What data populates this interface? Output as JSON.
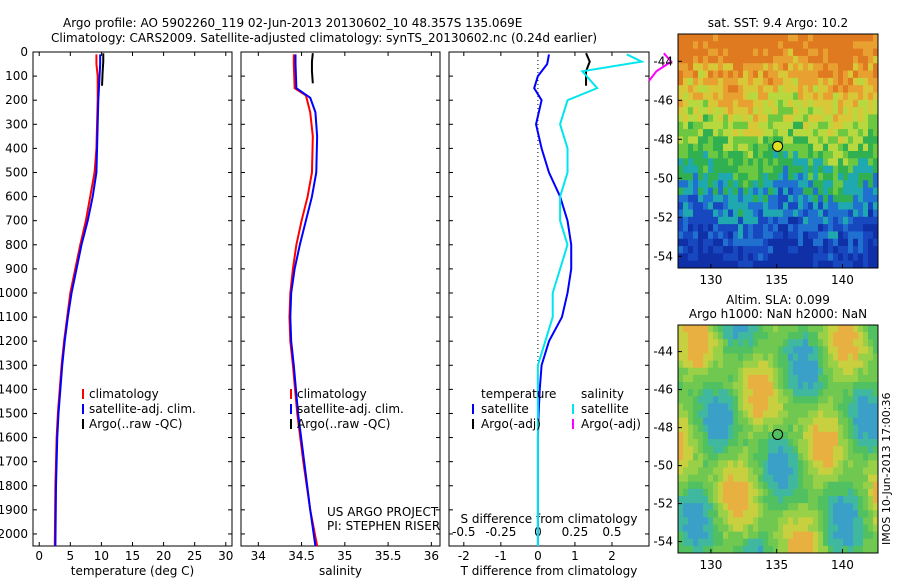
{
  "header": {
    "title_line1": "Argo profile: AO 5902260_119 02-Jun-2013 20130602_10 48.357S 135.069E",
    "title_line2": "Climatology: CARS2009. Satellite-adjusted climatology: synTS_20130602.nc (0.24d earlier)"
  },
  "colors": {
    "climatology": "#ff0000",
    "satellite": "#0000ff",
    "argo": "#000000",
    "sat_salinity": "#00e5ee",
    "argo_salinity": "#ff00ff"
  },
  "chart_data": [
    {
      "id": "temperature",
      "type": "line",
      "xlabel": "temperature (deg C)",
      "xlim": [
        -1,
        31
      ],
      "xticks": [
        0,
        5,
        10,
        15,
        20,
        25,
        30
      ],
      "ylim": [
        0,
        2050
      ],
      "yticks": [
        0,
        100,
        200,
        300,
        400,
        500,
        600,
        700,
        800,
        900,
        1000,
        1100,
        1200,
        1300,
        1400,
        1500,
        1600,
        1700,
        1800,
        1900,
        2000
      ],
      "y_inverted": true,
      "legend": [
        "climatology",
        "satellite-adj. clim.",
        "Argo(..raw -QC)"
      ],
      "series": [
        {
          "name": "climatology",
          "color": "#ff0000",
          "x": [
            9.2,
            9.2,
            9.4,
            9.4,
            9.4,
            9.3,
            9.2,
            8.9,
            8.2,
            7.5,
            6.6,
            5.8,
            5.0,
            4.5,
            4.0,
            3.6,
            3.3,
            3.0,
            2.8,
            2.7,
            2.6,
            2.5
          ],
          "y": [
            10,
            50,
            100,
            150,
            200,
            300,
            400,
            500,
            600,
            700,
            800,
            900,
            1000,
            1100,
            1200,
            1300,
            1400,
            1500,
            1600,
            1700,
            1800,
            2050
          ]
        },
        {
          "name": "satellite-adj. clim.",
          "color": "#0000ff",
          "x": [
            9.8,
            9.8,
            9.7,
            9.6,
            9.5,
            9.4,
            9.3,
            9.2,
            8.6,
            7.8,
            6.8,
            6.0,
            5.2,
            4.6,
            4.1,
            3.7,
            3.4,
            3.1,
            2.9,
            2.8,
            2.7,
            2.6
          ],
          "y": [
            10,
            50,
            100,
            150,
            200,
            300,
            400,
            500,
            600,
            700,
            800,
            900,
            1000,
            1100,
            1200,
            1300,
            1400,
            1500,
            1600,
            1700,
            1800,
            2050
          ]
        },
        {
          "name": "Argo(..raw -QC)",
          "color": "#000000",
          "x": [
            10.3,
            10.3,
            10.2,
            10.1
          ],
          "y": [
            5,
            40,
            80,
            140
          ]
        }
      ]
    },
    {
      "id": "salinity",
      "type": "line",
      "xlabel": "salinity",
      "xlim": [
        33.8,
        36.1
      ],
      "xticks": [
        34,
        34.5,
        35,
        35.5,
        36
      ],
      "ylim": [
        0,
        2050
      ],
      "y_inverted": true,
      "legend": [
        "climatology",
        "satellite-adj. clim.",
        "Argo(..raw -QC)"
      ],
      "annotations": [
        "US ARGO PROJECT",
        "PI: STEPHEN RISER"
      ],
      "series": [
        {
          "name": "climatology",
          "color": "#ff0000",
          "x": [
            34.41,
            34.41,
            34.42,
            34.55,
            34.6,
            34.63,
            34.62,
            34.57,
            34.5,
            34.44,
            34.4,
            34.37,
            34.36,
            34.37,
            34.4,
            34.45,
            34.52,
            34.6,
            34.68
          ],
          "y": [
            10,
            50,
            150,
            180,
            250,
            350,
            500,
            600,
            700,
            800,
            900,
            1000,
            1100,
            1200,
            1300,
            1500,
            1700,
            1900,
            2050
          ]
        },
        {
          "name": "satellite-adj. clim.",
          "color": "#0000ff",
          "x": [
            34.43,
            34.43,
            34.44,
            34.6,
            34.66,
            34.68,
            34.67,
            34.62,
            34.55,
            34.48,
            34.42,
            34.38,
            34.37,
            34.38,
            34.41,
            34.46,
            34.53,
            34.6,
            34.66
          ],
          "y": [
            10,
            50,
            150,
            190,
            250,
            350,
            500,
            600,
            700,
            800,
            900,
            1000,
            1100,
            1200,
            1300,
            1500,
            1700,
            1900,
            2050
          ]
        },
        {
          "name": "Argo(..raw -QC)",
          "color": "#000000",
          "x": [
            34.63,
            34.62,
            34.62,
            34.63
          ],
          "y": [
            5,
            40,
            80,
            130
          ]
        }
      ]
    },
    {
      "id": "difference",
      "type": "line",
      "xlabel": "T difference from climatology",
      "xlabel_top": "S difference from climatology",
      "xlim": [
        -2.4,
        3.0
      ],
      "xticks": [
        -2,
        -1,
        0,
        1,
        2
      ],
      "xticks_salinity": [
        -0.5,
        -0.25,
        0,
        0.25,
        0.5
      ],
      "ylim": [
        0,
        2050
      ],
      "y_inverted": true,
      "legend_groups": [
        {
          "heading": "temperature",
          "items": [
            "satellite",
            "Argo(-adj)"
          ]
        },
        {
          "heading": "salinity",
          "items": [
            "satellite",
            "Argo(-adj)"
          ]
        }
      ],
      "series": [
        {
          "name": "temperature satellite",
          "color": "#0000ff",
          "x": [
            0.3,
            0.25,
            0.0,
            -0.1,
            0.1,
            -0.05,
            0.1,
            0.3,
            0.6,
            0.8,
            0.9,
            0.9,
            0.8,
            0.65,
            0.3,
            0.1,
            0.05,
            0.02,
            0.0,
            0.0,
            0.0,
            0.0
          ],
          "y": [
            10,
            50,
            100,
            150,
            200,
            300,
            400,
            500,
            600,
            700,
            800,
            900,
            1000,
            1100,
            1200,
            1300,
            1400,
            1500,
            1600,
            1700,
            1800,
            2050
          ]
        },
        {
          "name": "temperature Argo(-adj)",
          "color": "#000000",
          "x": [
            1.3,
            1.4,
            1.3,
            1.3
          ],
          "y": [
            5,
            40,
            80,
            140
          ]
        },
        {
          "name": "salinity satellite",
          "color": "#00e5ee",
          "x": [
            0.6,
            0.7,
            0.3,
            0.4,
            0.2,
            0.15,
            0.2,
            0.2,
            0.15,
            0.15,
            0.2,
            0.15,
            0.1,
            0.1,
            0.05,
            0.0,
            0.0,
            0.0,
            0.0,
            0.0,
            0.0
          ],
          "y": [
            10,
            40,
            80,
            150,
            200,
            300,
            400,
            500,
            600,
            700,
            800,
            900,
            1000,
            1100,
            1200,
            1300,
            1400,
            1500,
            1600,
            1800,
            2050
          ]
        },
        {
          "name": "salinity Argo(-adj)",
          "color": "#ff00ff",
          "x": [
            0.85,
            0.9,
            0.8,
            0.75
          ],
          "y": [
            5,
            40,
            80,
            120
          ]
        }
      ]
    },
    {
      "id": "sst-map",
      "type": "heatmap",
      "title": "sat. SST: 9.4  Argo: 10.2",
      "xticks": [
        130,
        135,
        140
      ],
      "yticks": [
        -44,
        -46,
        -48,
        -50,
        -52,
        -54
      ],
      "xlim": [
        127.5,
        142.7
      ],
      "ylim": [
        -54.6,
        -42.6
      ],
      "marker": [
        135.07,
        -48.36
      ]
    },
    {
      "id": "sla-map",
      "type": "heatmap",
      "title": "Altim. SLA: 0.099",
      "subtitle": "Argo h1000: NaN  h2000: NaN",
      "xticks": [
        130,
        135,
        140
      ],
      "yticks": [
        -44,
        -46,
        -48,
        -50,
        -52,
        -54
      ],
      "xlim": [
        127.5,
        142.7
      ],
      "ylim": [
        -54.6,
        -42.6
      ],
      "marker": [
        135.07,
        -48.36
      ]
    }
  ],
  "footer": {
    "watermark": "IMOS 10-Jun-2013 17:00:36"
  }
}
